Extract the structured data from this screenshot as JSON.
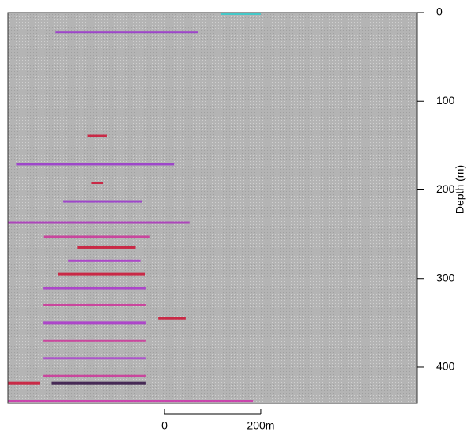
{
  "chart_data": {
    "type": "echogram",
    "y_label": "Depth (m)",
    "ylim": [
      441,
      0
    ],
    "yticks": [
      0,
      100,
      200,
      300,
      400
    ],
    "xlim": [
      -325,
      525
    ],
    "xticks": [
      {
        "value": 0,
        "label": "0"
      },
      {
        "value": 200,
        "label": "200m"
      }
    ],
    "background": "#b4b4b4",
    "echoes": {
      "x0": [
        118,
        -226,
        -160,
        -308,
        -152,
        -210,
        -325,
        -250,
        -13,
        -251,
        -251,
        -251,
        -251,
        -251,
        -251,
        -325,
        -234,
        -325,
        -180,
        -200,
        -220
      ],
      "x1": [
        200,
        69,
        -120,
        20,
        -128,
        -46,
        52,
        -30,
        44,
        -38,
        -38,
        -38,
        -38,
        -38,
        -38,
        -259,
        -38,
        184,
        -60,
        -50,
        -40
      ],
      "depth": [
        0,
        22,
        139,
        171,
        192,
        213,
        237,
        253,
        345,
        311,
        330,
        350,
        370,
        390,
        410,
        418,
        418,
        438,
        265,
        280,
        295
      ],
      "colors": [
        "#33cccc",
        "#9933cc",
        "#cc1133",
        "#9933cc",
        "#cc1133",
        "#9933cc",
        "#aa33bb",
        "#cc3399",
        "#cc1133",
        "#aa33cc",
        "#cc3399",
        "#aa33cc",
        "#cc3399",
        "#aa44cc",
        "#cc3399",
        "#cc1133",
        "#331144",
        "#cc33aa",
        "#cc1133",
        "#aa33cc",
        "#cc1133"
      ]
    }
  }
}
